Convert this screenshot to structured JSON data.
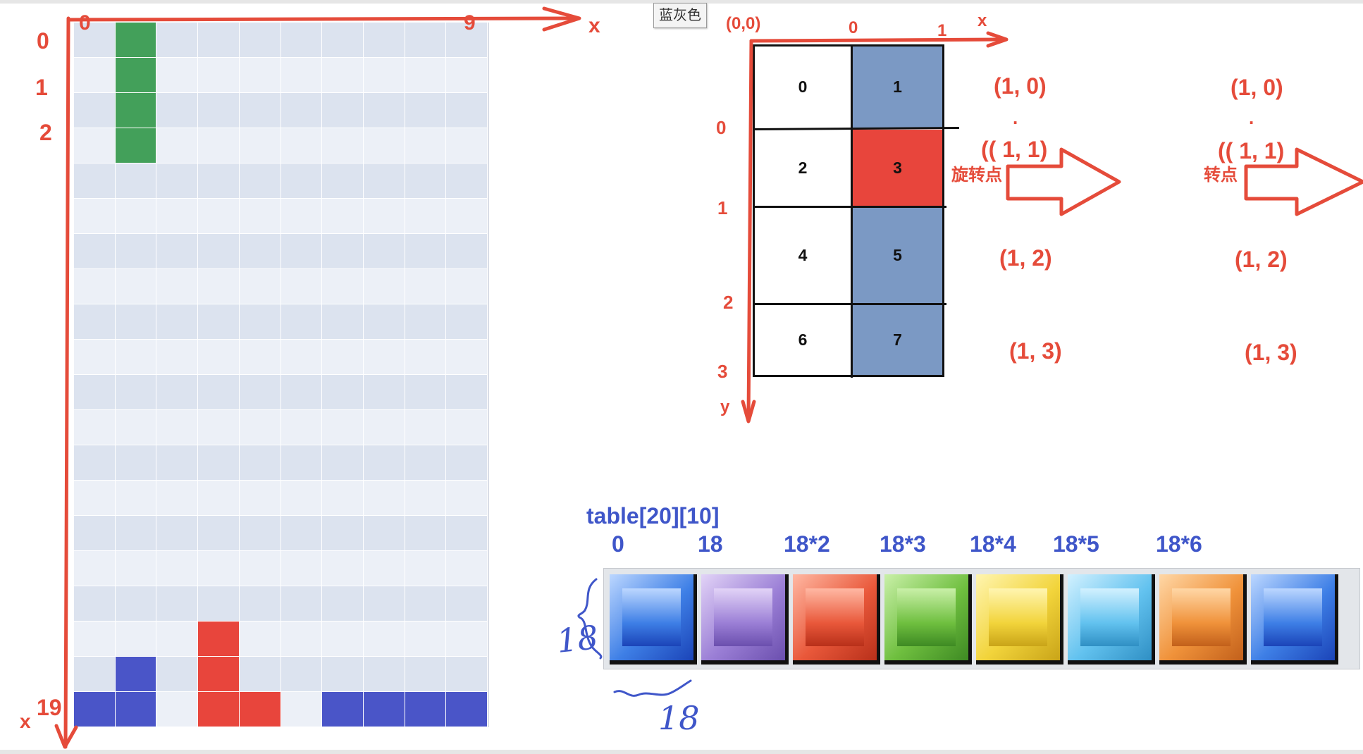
{
  "tooltip": {
    "text": "蓝灰色"
  },
  "board": {
    "cols": 10,
    "rows": 20,
    "origin_label": "0",
    "last_col_label": "9",
    "x_axis_label": "x",
    "row_labels": [
      "0",
      "1",
      "2"
    ],
    "last_row_label": "19",
    "bottom_axis_label": "x",
    "filled": [
      {
        "r": 0,
        "c": 1,
        "color": "green"
      },
      {
        "r": 1,
        "c": 1,
        "color": "green"
      },
      {
        "r": 2,
        "c": 1,
        "color": "green"
      },
      {
        "r": 3,
        "c": 1,
        "color": "green"
      },
      {
        "r": 17,
        "c": 3,
        "color": "red"
      },
      {
        "r": 18,
        "c": 1,
        "color": "blue"
      },
      {
        "r": 18,
        "c": 3,
        "color": "red"
      },
      {
        "r": 19,
        "c": 0,
        "color": "blue"
      },
      {
        "r": 19,
        "c": 1,
        "color": "blue"
      },
      {
        "r": 19,
        "c": 3,
        "color": "red"
      },
      {
        "r": 19,
        "c": 4,
        "color": "red"
      },
      {
        "r": 19,
        "c": 6,
        "color": "blue"
      },
      {
        "r": 19,
        "c": 7,
        "color": "blue"
      },
      {
        "r": 19,
        "c": 8,
        "color": "blue"
      },
      {
        "r": 19,
        "c": 9,
        "color": "blue"
      }
    ],
    "colors": {
      "green": "#43a05a",
      "blue": "#4a55c8",
      "red": "#e8453c",
      "row_even": "#dce3ef",
      "row_odd": "#ecf0f7"
    }
  },
  "piece": {
    "origin_label": "(0,0)",
    "x_ticks": [
      "0",
      "1"
    ],
    "x_axis_label": "x",
    "y_ticks": [
      "0",
      "1",
      "2",
      "3"
    ],
    "y_axis_label": "y",
    "cells": [
      {
        "label": "0",
        "fill": "white"
      },
      {
        "label": "1",
        "fill": "blue"
      },
      {
        "label": "2",
        "fill": "white"
      },
      {
        "label": "3",
        "fill": "red"
      },
      {
        "label": "4",
        "fill": "white"
      },
      {
        "label": "5",
        "fill": "blue"
      },
      {
        "label": "6",
        "fill": "white"
      },
      {
        "label": "7",
        "fill": "blue"
      }
    ]
  },
  "coords_a": {
    "c0": "(1,  0)",
    "dot": ".",
    "c1": "(( 1, 1)",
    "pivot": "旋转点",
    "c2": "(1,  2)",
    "c3": "(1, 3)"
  },
  "coords_b": {
    "c0": "(1,  0)",
    "dot": ".",
    "c1": "(( 1, 1)",
    "pivot": "转点",
    "c2": "(1,  2)",
    "c3": "(1, 3)"
  },
  "tiles": {
    "title": "table[20][10]",
    "offsets": [
      "0",
      "18",
      "18*2",
      "18*3",
      "18*4",
      "18*5",
      "18*6"
    ],
    "colors": [
      {
        "light": "#bcd7ff",
        "main": "#3e7fe6",
        "dark": "#1b44b8"
      },
      {
        "light": "#e2d3f7",
        "main": "#9b7fd6",
        "dark": "#6b4fae"
      },
      {
        "light": "#ffb8a3",
        "main": "#e9583a",
        "dark": "#b8301a"
      },
      {
        "light": "#c9f0a8",
        "main": "#6fbf3f",
        "dark": "#3e8a23"
      },
      {
        "light": "#fff5b0",
        "main": "#f2d43b",
        "dark": "#c9a418"
      },
      {
        "light": "#d2f1ff",
        "main": "#62c2ef",
        "dark": "#2f8fc4"
      },
      {
        "light": "#ffd7a6",
        "main": "#f0923a",
        "dark": "#c2601b"
      },
      {
        "light": "#bcd7ff",
        "main": "#3e7fe6",
        "dark": "#1b44b8"
      }
    ],
    "height_note": "18",
    "width_note": "18"
  },
  "accent_red": "#e54b3a",
  "accent_blue": "#3f56c9"
}
